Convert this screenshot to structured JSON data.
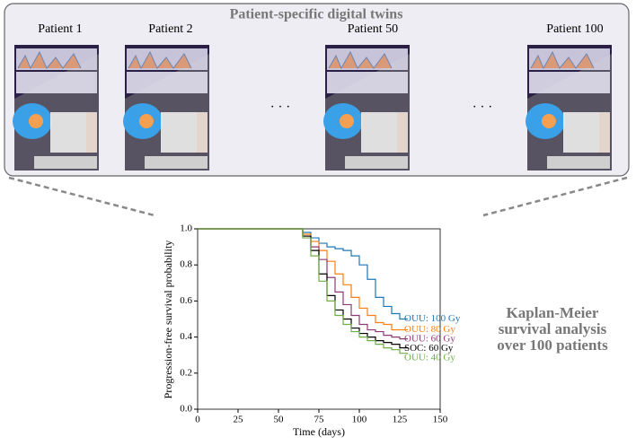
{
  "panel": {
    "title": "Patient-specific digital twins",
    "patients": [
      "Patient 1",
      "Patient 2",
      "Patient 50",
      "Patient 100"
    ],
    "ellipses": [
      "· · ·",
      "· · ·"
    ]
  },
  "caption": "Kaplan-Meier survival analysis over 100 patients",
  "chart_data": {
    "type": "line",
    "step": true,
    "xlabel": "Time (days)",
    "ylabel": "Progression-free survival probability",
    "xlim": [
      0,
      150
    ],
    "xticks": [
      0,
      25,
      50,
      75,
      100,
      125,
      150
    ],
    "ylim": [
      0,
      1
    ],
    "yticks": [
      {
        "value": 0,
        "label": "0.0"
      },
      0.2,
      0.4,
      0.6,
      0.8,
      {
        "value": 1,
        "label": "1.0"
      }
    ],
    "x": [
      0,
      60,
      65,
      70,
      75,
      80,
      85,
      90,
      95,
      100,
      105,
      110,
      115,
      120,
      125,
      130
    ],
    "series": [
      {
        "name": "OUU: 100 Gy",
        "color": "#1f77b4",
        "values": [
          1,
          1,
          0.98,
          0.95,
          0.92,
          0.9,
          0.89,
          0.88,
          0.85,
          0.8,
          0.72,
          0.62,
          0.57,
          0.53,
          0.5,
          0.5
        ]
      },
      {
        "name": "OUU: 80 Gy",
        "color": "#ff7f0e",
        "values": [
          1,
          1,
          0.97,
          0.93,
          0.88,
          0.82,
          0.75,
          0.69,
          0.62,
          0.56,
          0.52,
          0.48,
          0.47,
          0.44,
          0.44,
          0.44
        ]
      },
      {
        "name": "OUU: 60 Gy",
        "color": "#8e3a7a",
        "values": [
          1,
          1,
          0.96,
          0.9,
          0.83,
          0.73,
          0.65,
          0.58,
          0.52,
          0.47,
          0.44,
          0.43,
          0.41,
          0.4,
          0.39,
          0.39
        ]
      },
      {
        "name": "SOC: 60 Gy",
        "color": "#000000",
        "values": [
          1,
          1,
          0.96,
          0.88,
          0.75,
          0.63,
          0.55,
          0.5,
          0.45,
          0.42,
          0.4,
          0.38,
          0.37,
          0.36,
          0.34,
          0.34
        ]
      },
      {
        "name": "OUU: 40 Gy",
        "color": "#70ad47",
        "values": [
          1,
          1,
          0.95,
          0.85,
          0.71,
          0.6,
          0.52,
          0.47,
          0.43,
          0.4,
          0.38,
          0.36,
          0.34,
          0.33,
          0.31,
          0.31
        ]
      }
    ]
  }
}
